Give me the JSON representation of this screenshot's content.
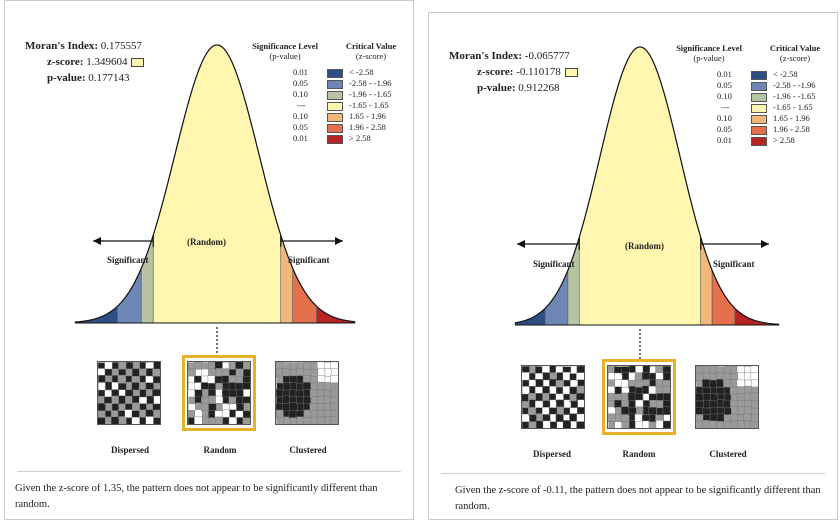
{
  "legend_headers": {
    "sig_level": "Significance Level",
    "sig_level_sub": "(p-value)",
    "crit_value": "Critical Value",
    "crit_value_sub": "(z-score)"
  },
  "legend_rows": [
    {
      "p": "0.01",
      "z": "< -2.58",
      "color": "#2e4f86"
    },
    {
      "p": "0.05",
      "z": "-2.58 - -1.96",
      "color": "#6e86b4"
    },
    {
      "p": "0.10",
      "z": "-1.96 - -1.65",
      "color": "#b7c4a4"
    },
    {
      "p": "---",
      "z": "-1.65 - 1.65",
      "color": "#fff7b0"
    },
    {
      "p": "0.10",
      "z": "1.65 - 1.96",
      "color": "#f2b77a"
    },
    {
      "p": "0.05",
      "z": "1.96 - 2.58",
      "color": "#e4714c"
    },
    {
      "p": "0.01",
      "z": "> 2.58",
      "color": "#b82423"
    }
  ],
  "curve_labels": {
    "random": "(Random)",
    "significant_left": "Significant",
    "significant_right": "Significant"
  },
  "pattern_labels": {
    "dispersed": "Dispersed",
    "random": "Random",
    "clustered": "Clustered"
  },
  "left": {
    "morans_index_label": "Moran's Index:",
    "morans_index": "0.175557",
    "z_score_label": "z-score:",
    "z_score": "1.349604",
    "p_value_label": "p-value:",
    "p_value": "0.177143",
    "summary_line1": "Given the z-score of 1.35, the pattern does not appear to be significantly different than",
    "summary_line2": "random."
  },
  "right": {
    "morans_index_label": "Moran's Index:",
    "morans_index": "-0.065777",
    "z_score_label": "z-score:",
    "z_score": "-0.110178",
    "p_value_label": "p-value:",
    "p_value": "0.912268",
    "summary_line1": "Given the z-score of -0.11, the pattern does not appear to be significantly different than",
    "summary_line2": "random."
  },
  "colors": {
    "selection": "#e8b12a",
    "curve_fill": "#fff7b0"
  }
}
